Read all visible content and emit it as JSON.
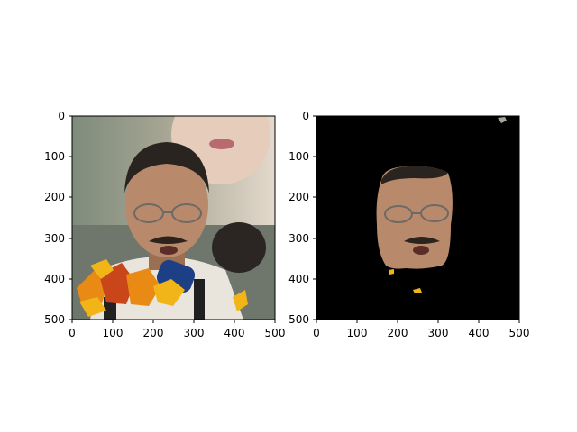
{
  "figure": {
    "background": "#ffffff",
    "panels": [
      {
        "id": "left",
        "image_kind": "photo",
        "image_description_icon": "portrait-photo",
        "x_ticks": [
          "0",
          "100",
          "200",
          "300",
          "400",
          "500"
        ],
        "y_ticks": [
          "0",
          "100",
          "200",
          "300",
          "400",
          "500"
        ]
      },
      {
        "id": "right",
        "image_kind": "mask-overlay",
        "image_description_icon": "face-segmentation-mask",
        "x_ticks": [
          "0",
          "100",
          "200",
          "300",
          "400",
          "500"
        ],
        "y_ticks": [
          "0",
          "100",
          "200",
          "300",
          "400",
          "500"
        ]
      }
    ]
  },
  "colors": {
    "axis": "#000000",
    "mask_background": "#000000",
    "skin": "#b9896b",
    "skin_shadow": "#8a5f45",
    "hair": "#2a2420",
    "shirt": "#e9e5dc",
    "backdrop_top": "#8f9a8c",
    "backdrop_right": "#ddd4c6",
    "leaf_orange": "#e98a15",
    "leaf_yellow": "#f2b517",
    "leaf_red": "#c8461a",
    "mic_blue": "#1c3f86"
  }
}
